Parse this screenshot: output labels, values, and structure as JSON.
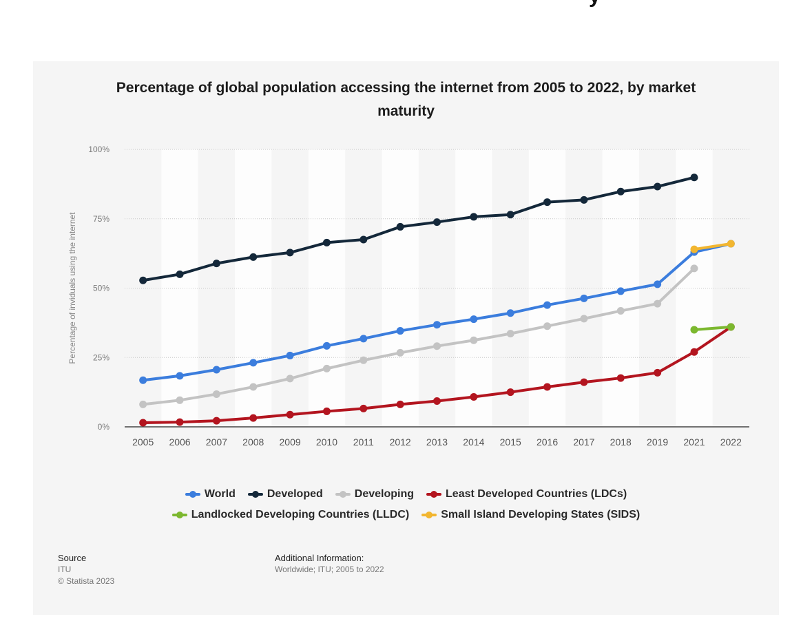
{
  "chart_data": {
    "type": "line",
    "title": "Percentage of global population accessing the internet from 2005 to 2022, by market maturity",
    "ylabel": "Percentage of inviduals using the internet",
    "xlabel": "",
    "categories": [
      "2005",
      "2006",
      "2007",
      "2008",
      "2009",
      "2010",
      "2011",
      "2012",
      "2013",
      "2014",
      "2015",
      "2016",
      "2017",
      "2018",
      "2019",
      "2021",
      "2022"
    ],
    "yticks": [
      "0%",
      "25%",
      "50%",
      "75%",
      "100%"
    ],
    "ylim": [
      0,
      100
    ],
    "grid": true,
    "legend_position": "bottom",
    "series": [
      {
        "name": "World",
        "color": "#3b7ddd",
        "values": [
          16.8,
          18.4,
          20.6,
          23.1,
          25.7,
          29.2,
          31.8,
          34.6,
          36.8,
          38.8,
          41.0,
          43.9,
          46.3,
          48.9,
          51.4,
          63,
          66
        ]
      },
      {
        "name": "Developed",
        "color": "#14283a",
        "values": [
          52.8,
          55.0,
          58.9,
          61.2,
          62.8,
          66.4,
          67.5,
          72.1,
          73.8,
          75.7,
          76.5,
          81.0,
          81.8,
          84.8,
          86.6,
          89.9,
          null
        ]
      },
      {
        "name": "Developing",
        "color": "#c3c3c3",
        "values": [
          8.1,
          9.6,
          11.8,
          14.4,
          17.4,
          21.0,
          24.0,
          26.7,
          29.1,
          31.2,
          33.6,
          36.3,
          39.0,
          41.8,
          44.4,
          57.1,
          null
        ]
      },
      {
        "name": "Least Developed Countries (LDCs)",
        "color": "#b3151f",
        "values": [
          1.5,
          1.7,
          2.2,
          3.2,
          4.4,
          5.6,
          6.6,
          8.1,
          9.3,
          10.8,
          12.5,
          14.4,
          16.1,
          17.6,
          19.5,
          27,
          36
        ]
      },
      {
        "name": "Landlocked Developing Countries (LLDC)",
        "color": "#7cb82f",
        "values": [
          null,
          null,
          null,
          null,
          null,
          null,
          null,
          null,
          null,
          null,
          null,
          null,
          null,
          null,
          null,
          35,
          36
        ]
      },
      {
        "name": "Small Island Developing States (SIDS)",
        "color": "#f2b630",
        "values": [
          null,
          null,
          null,
          null,
          null,
          null,
          null,
          null,
          null,
          null,
          null,
          null,
          null,
          null,
          null,
          64,
          66
        ]
      }
    ]
  },
  "source": {
    "label": "Source",
    "lines": [
      "ITU",
      "© Statista 2023"
    ]
  },
  "additional_info": {
    "label": "Additional Information:",
    "text": "Worldwide; ITU; 2005 to 2022"
  },
  "top_fragment": "y"
}
